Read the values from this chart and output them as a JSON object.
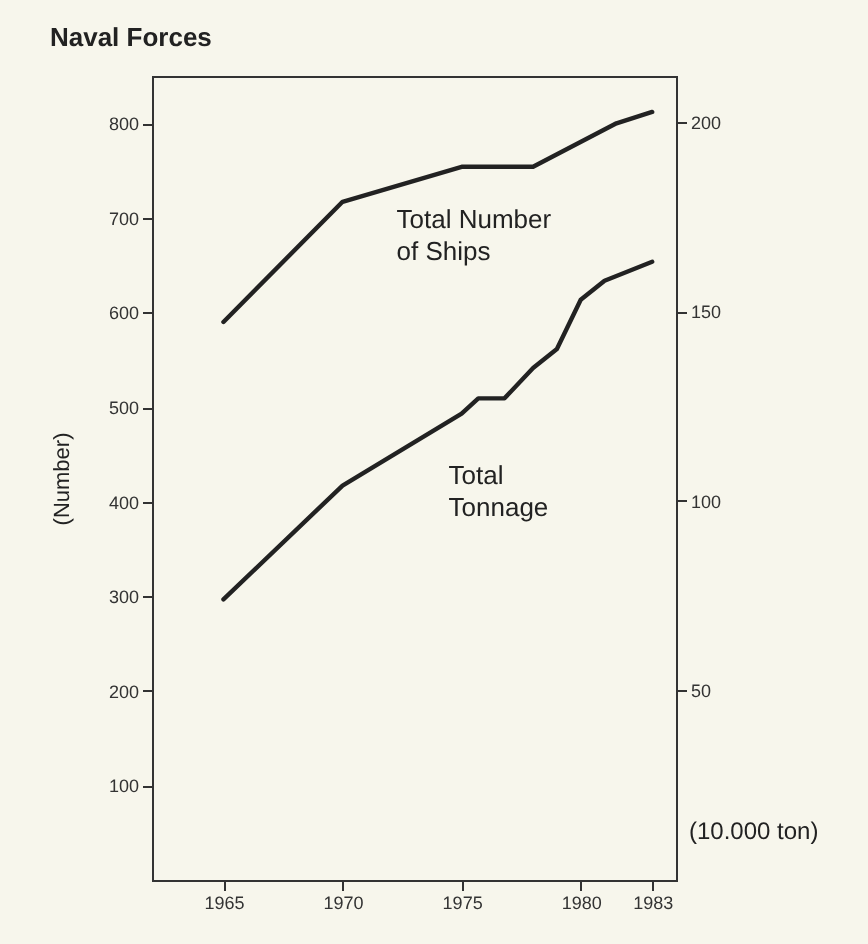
{
  "chart_data": {
    "type": "line",
    "title": "Naval Forces",
    "ylabel": "(Number)",
    "y2label": "(10.000 ton)",
    "xlim": [
      1962,
      1984
    ],
    "xticks": [
      1965,
      1970,
      1975,
      1980,
      1983
    ],
    "ylim": [
      0,
      850
    ],
    "yticks": [
      100,
      200,
      300,
      400,
      500,
      600,
      700,
      800
    ],
    "y2lim": [
      0,
      212
    ],
    "y2ticks": [
      50,
      100,
      150,
      200
    ],
    "grid": false,
    "marker": "none",
    "line_style": "solid",
    "series": [
      {
        "name": "Total Number\nof Ships",
        "color": "#222222",
        "x": [
          1965,
          1970,
          1975,
          1978,
          1981.5,
          1983
        ],
        "values": [
          590,
          717,
          754,
          754,
          800,
          812
        ]
      },
      {
        "name": "Total\nTonnage",
        "color": "#222222",
        "axis": "y2",
        "x": [
          1965,
          1970,
          1975,
          1975.7,
          1976.8,
          1978,
          1979,
          1980,
          1981,
          1983
        ],
        "values": [
          74,
          104,
          123,
          127,
          127,
          135,
          140,
          153,
          158,
          163
        ]
      }
    ]
  }
}
